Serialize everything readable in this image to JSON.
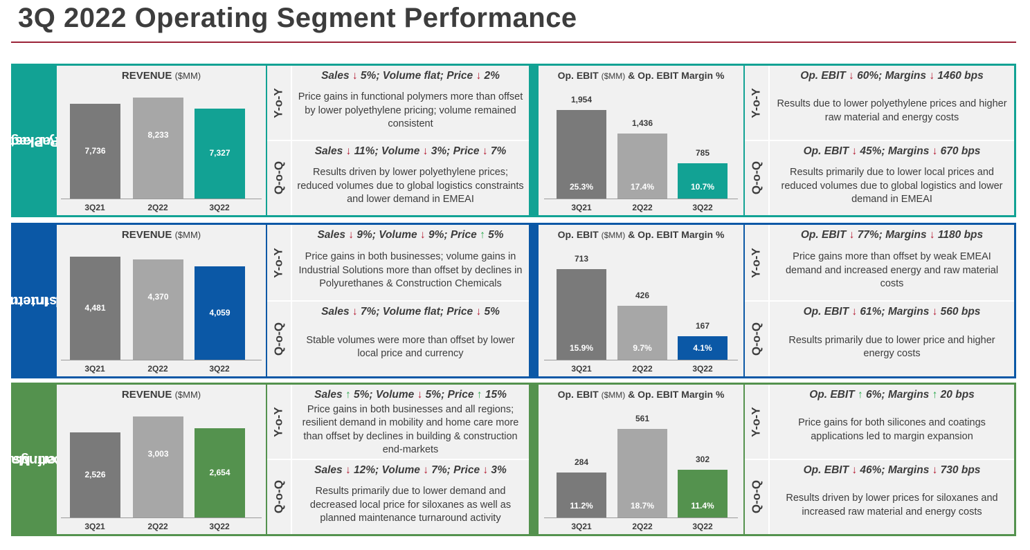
{
  "title": "3Q 2022 Operating Segment Performance",
  "colors": {
    "rule": "#9a2238",
    "pack": "#12a294",
    "ind": "#0b58a6",
    "perf": "#54924e",
    "bar_dark": "#7a7a7a",
    "bar_light": "#a7a7a7",
    "up": "#2eaa4f",
    "down": "#b3162e"
  },
  "labels": {
    "revenue": "REVENUE",
    "mm": "($MM)",
    "ebit_a": "Op. EBIT",
    "ebit_mm": "($MM)",
    "ebit_b": "& Op. EBIT Margin %",
    "yoy": "Y-o-Y",
    "qoq": "Q-o-Q"
  },
  "categories": [
    "3Q21",
    "2Q22",
    "3Q22"
  ],
  "segments": [
    {
      "name_line1": "Packaging &",
      "name_line2": "Specialty Plastics",
      "revenue": [
        "7,736",
        "8,233",
        "7,327"
      ],
      "ebit": [
        "1,954",
        "1,436",
        "785"
      ],
      "margin": [
        "25.3%",
        "17.4%",
        "10.7%"
      ],
      "sales_yoy": {
        "p1": "Sales ",
        "a1": "↓",
        "p2": " 5%; Volume flat; Price ",
        "a2": "↓",
        "p3": " 2%",
        "p4": "",
        "a3": "",
        "p5": "",
        "text": "Price gains in functional polymers more than offset by lower polyethylene pricing; volume remained consistent"
      },
      "sales_qoq": {
        "p1": "Sales ",
        "a1": "↓",
        "p2": " 11%; Volume ",
        "a2": "↓",
        "p3": " 3%; Price ",
        "a3": "↓",
        "p4": " 7%",
        "text": "Results driven by lower polyethylene prices; reduced volumes due to global logistics constraints and lower demand in EMEAI"
      },
      "ebit_yoy": {
        "p1": "Op. EBIT ",
        "a1": "↓",
        "p2": " 60%; Margins ",
        "a2": "↓",
        "p3": " 1460 bps",
        "text": "Results due to lower polyethylene prices and higher raw material and energy costs"
      },
      "ebit_qoq": {
        "p1": "Op. EBIT ",
        "a1": "↓",
        "p2": " 45%; Margins ",
        "a2": "↓",
        "p3": " 670 bps",
        "text": "Results primarily due to lower local prices and reduced volumes due to global logistics and lower demand in EMEAI"
      }
    },
    {
      "name_line1": "Ind. Intermediates",
      "name_line2": "& Infrastructure",
      "revenue": [
        "4,481",
        "4,370",
        "4,059"
      ],
      "ebit": [
        "713",
        "426",
        "167"
      ],
      "margin": [
        "15.9%",
        "9.7%",
        "4.1%"
      ],
      "sales_yoy": {
        "p1": "Sales ",
        "a1": "↓",
        "p2": " 9%; Volume ",
        "a2": "↓",
        "p3": " 9%; Price ",
        "a3": "↑",
        "p4": " 5%",
        "text": "Price gains in both businesses; volume gains in Industrial Solutions more than offset by declines in Polyurethanes & Construction Chemicals"
      },
      "sales_qoq": {
        "p1": "Sales ",
        "a1": "↓",
        "p2": " 7%; Volume flat; Price ",
        "a2": "↓",
        "p3": " 5%",
        "text": "Stable volumes were more than offset by lower local price and currency"
      },
      "ebit_yoy": {
        "p1": "Op. EBIT ",
        "a1": "↓",
        "p2": " 77%; Margins ",
        "a2": "↓",
        "p3": " 1180 bps",
        "text": "Price gains more than offset by weak EMEAI demand and increased energy and raw material costs"
      },
      "ebit_qoq": {
        "p1": "Op. EBIT ",
        "a1": "↓",
        "p2": " 61%; Margins ",
        "a2": "↓",
        "p3": " 560 bps",
        "text": "Results primarily due to lower price and higher energy costs"
      }
    },
    {
      "name_line1": "Perf. Materials",
      "name_line2": "& Coatings",
      "revenue": [
        "2,526",
        "3,003",
        "2,654"
      ],
      "ebit": [
        "284",
        "561",
        "302"
      ],
      "margin": [
        "11.2%",
        "18.7%",
        "11.4%"
      ],
      "sales_yoy": {
        "p1": "Sales ",
        "a1": "↑",
        "p2": " 5%; Volume ",
        "a2": "↓",
        "p3": " 5%; Price ",
        "a3": "↑",
        "p4": " 15%",
        "text": "Price gains in both businesses and all regions; resilient demand in mobility and home care more than offset by declines in building & construction end-markets"
      },
      "sales_qoq": {
        "p1": "Sales ",
        "a1": "↓",
        "p2": " 12%; Volume ",
        "a2": "↓",
        "p3": " 7%; Price ",
        "a3": "↓",
        "p4": " 3%",
        "text": "Results primarily due to lower demand and decreased local price for siloxanes as well as planned maintenance turnaround activity"
      },
      "ebit_yoy": {
        "p1": "Op. EBIT ",
        "a1": "↑",
        "p2": " 6%; Margins ",
        "a2": "↑",
        "p3": " 20 bps",
        "text": "Price gains for both silicones and coatings applications led to margin expansion"
      },
      "ebit_qoq": {
        "p1": "Op. EBIT ",
        "a1": "↓",
        "p2": " 46%; Margins ",
        "a2": "↓",
        "p3": " 730 bps",
        "text": "Results driven by lower prices for siloxanes and increased raw material and energy costs"
      }
    }
  ]
}
